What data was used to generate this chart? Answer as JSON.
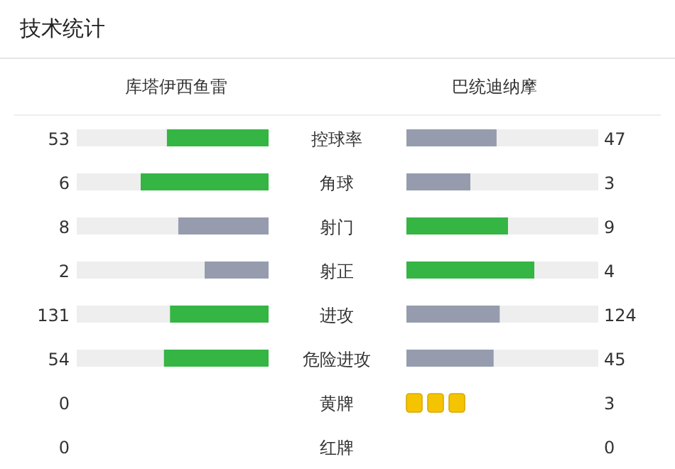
{
  "chart_data": [
    {
      "type": "other",
      "title": "技术统计",
      "categories": [
        "控球率",
        "角球",
        "射门",
        "射正",
        "进攻",
        "危险进攻"
      ],
      "series": [
        {
          "name": "库塔伊西鱼雷",
          "values": [
            53,
            6,
            8,
            2,
            131,
            54
          ],
          "colors": [
            "#35b544",
            "#35b544",
            "#969cae",
            "#969cae",
            "#35b544",
            "#35b544"
          ]
        },
        {
          "name": "巴统迪纳摩",
          "values": [
            47,
            3,
            9,
            4,
            124,
            45
          ],
          "colors": [
            "#969cae",
            "#969cae",
            "#35b544",
            "#35b544",
            "#969cae",
            "#969cae"
          ]
        }
      ],
      "data_labels": true
    },
    {
      "type": "other",
      "categories": [
        "黄牌",
        "红牌"
      ],
      "series": [
        {
          "values": [
            0,
            0
          ],
          "color": "#f5c400"
        },
        {
          "values": [
            3,
            0
          ],
          "color": "#f5c400"
        }
      ],
      "data_labels": true
    }
  ]
}
